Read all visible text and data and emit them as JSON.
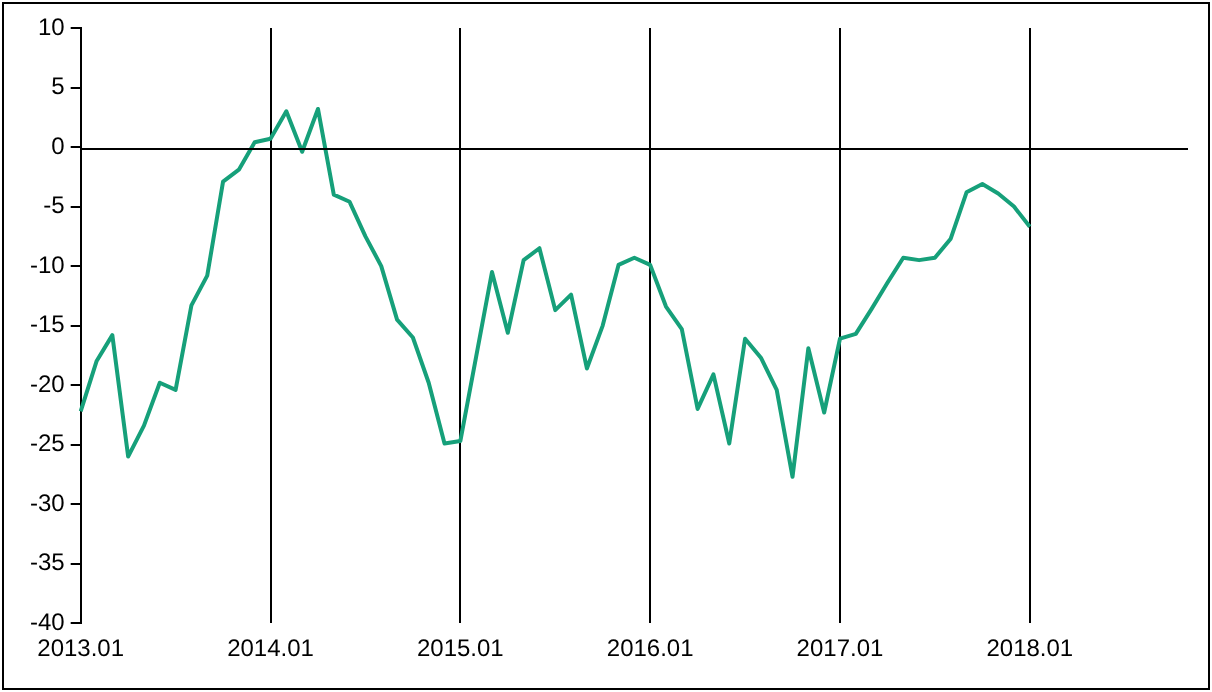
{
  "chart_data": {
    "type": "line",
    "categories": [
      "2013.01",
      null,
      null,
      null,
      null,
      null,
      null,
      null,
      null,
      null,
      null,
      null,
      "2014.01",
      null,
      null,
      null,
      null,
      null,
      null,
      null,
      null,
      null,
      null,
      null,
      "2015.01",
      null,
      null,
      null,
      null,
      null,
      null,
      null,
      null,
      null,
      null,
      null,
      "2016.01",
      null,
      null,
      null,
      null,
      null,
      null,
      null,
      null,
      null,
      null,
      null,
      "2017.01",
      null,
      null,
      null,
      null,
      null,
      null,
      null,
      null,
      null,
      null,
      null,
      "2018.01",
      null,
      null,
      null,
      null,
      null,
      null,
      null,
      null,
      null,
      null
    ],
    "series": [
      {
        "color": "#16a07a",
        "values": [
          -22.2,
          -18,
          -15.8,
          -26,
          -23.4,
          -19.8,
          -20.4,
          -13.3,
          -10.8,
          -2.9,
          -1.9,
          0.4,
          0.7,
          3.0,
          -0.4,
          3.2,
          -4.0,
          -4.6,
          -7.5,
          -10.0,
          -14.5,
          -16.0,
          -19.8,
          -24.9,
          -24.7,
          -17.6,
          -10.5,
          -15.6,
          -9.5,
          -8.5,
          -13.7,
          -12.4,
          -18.6,
          -15,
          -9.9,
          -9.3,
          -9.9,
          -13.4,
          -15.3,
          -22,
          -19.1,
          -24.9,
          -16.1,
          -17.7,
          -20.4,
          -27.7,
          -16.9,
          -22.3,
          -16.1,
          -15.7,
          -13.6,
          -11.4,
          -9.3,
          -9.5,
          -9.3,
          -7.7,
          -3.8,
          -3.1,
          -3.9,
          -5.0,
          -6.7,
          null,
          null,
          null,
          null,
          null,
          null,
          null,
          null,
          null,
          null
        ]
      }
    ],
    "ylim": [
      -40,
      10
    ],
    "yticks": [
      -40,
      -35,
      -30,
      -25,
      -20,
      -15,
      -10,
      -5,
      0,
      5,
      10
    ],
    "grid": "x",
    "legend": false,
    "ref_lines": [
      {
        "axis": "y",
        "value": 0,
        "color": "#000000"
      }
    ]
  }
}
